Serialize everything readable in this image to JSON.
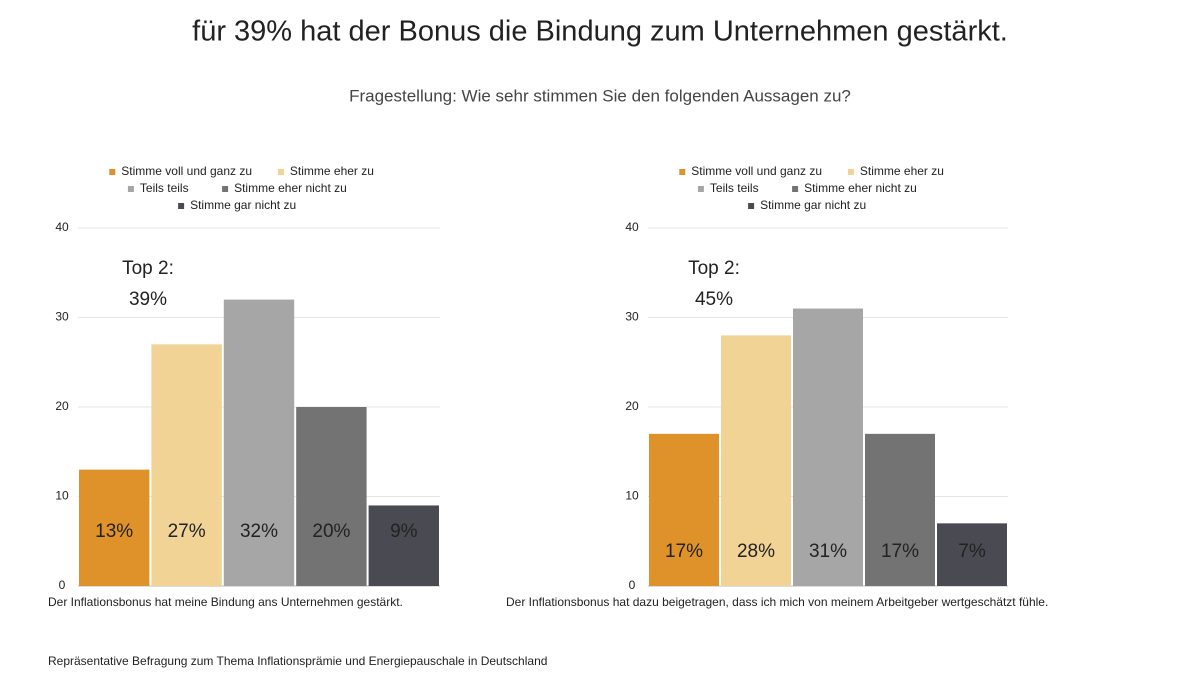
{
  "title": "für 39% hat der Bonus die Bindung zum Unternehmen gestärkt.",
  "subtitle": "Fragestellung: Wie sehr stimmen Sie den folgenden Aussagen zu?",
  "footnote": "Repräsentative Befragung zum Thema Inflationsprämie und Energiepauschale in Deutschland",
  "chart_data": [
    {
      "type": "bar",
      "categories": [
        "Der Inflationsbonus hat meine Bindung ans Unternehmen gestärkt."
      ],
      "annotations": [
        "Top 2:",
        "39%"
      ],
      "series": [
        {
          "name": "Stimme voll und ganz zu",
          "color": "#e0922a",
          "values": [
            13
          ],
          "value_labels": [
            "13%"
          ]
        },
        {
          "name": "Stimme eher zu",
          "color": "#f2d396",
          "values": [
            27
          ],
          "value_labels": [
            "27%"
          ]
        },
        {
          "name": "Teils teils",
          "color": "#a6a6a6",
          "values": [
            32
          ],
          "value_labels": [
            "32%"
          ]
        },
        {
          "name": "Stimme eher nicht zu",
          "color": "#737373",
          "values": [
            20
          ],
          "value_labels": [
            "20%"
          ]
        },
        {
          "name": "Stimme gar nicht zu",
          "color": "#4a4a52",
          "values": [
            9
          ],
          "value_labels": [
            "9%"
          ]
        }
      ],
      "ylim": [
        0,
        40
      ],
      "yticks": [
        0,
        10,
        20,
        30,
        40
      ],
      "grid": true
    },
    {
      "type": "bar",
      "categories": [
        "Der Inflationsbonus hat dazu beigetragen, dass ich mich von meinem Arbeitgeber wertgeschätzt fühle."
      ],
      "annotations": [
        "Top 2:",
        "45%"
      ],
      "series": [
        {
          "name": "Stimme voll und ganz zu",
          "color": "#e0922a",
          "values": [
            17
          ],
          "value_labels": [
            "17%"
          ]
        },
        {
          "name": "Stimme eher zu",
          "color": "#f2d396",
          "values": [
            28
          ],
          "value_labels": [
            "28%"
          ]
        },
        {
          "name": "Teils teils",
          "color": "#a6a6a6",
          "values": [
            31
          ],
          "value_labels": [
            "31%"
          ]
        },
        {
          "name": "Stimme eher nicht zu",
          "color": "#737373",
          "values": [
            17
          ],
          "value_labels": [
            "17%"
          ]
        },
        {
          "name": "Stimme gar nicht zu",
          "color": "#4a4a52",
          "values": [
            7
          ],
          "value_labels": [
            "7%"
          ]
        }
      ],
      "ylim": [
        0,
        40
      ],
      "yticks": [
        0,
        10,
        20,
        30,
        40
      ],
      "grid": true
    }
  ]
}
